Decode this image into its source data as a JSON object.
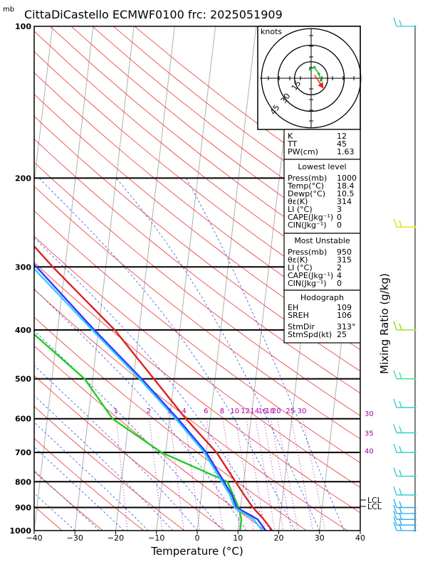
{
  "chart_data": {
    "type": "line",
    "title": "CittaDiCastello ECMWF0100 frc: 2025051909",
    "pressure_unit": "mb",
    "xlabel": "Temperature (°C)",
    "ylabel_right": "Mixing Ratio (g/kg)",
    "xlim": [
      -40,
      40
    ],
    "ylim": [
      1000,
      100
    ],
    "x_ticks": [
      -40,
      -30,
      -20,
      -10,
      0,
      10,
      20,
      30,
      40
    ],
    "pressure_levels": [
      100,
      200,
      300,
      400,
      500,
      600,
      700,
      800,
      900,
      1000
    ],
    "mixing_ratio_labels": [
      "1",
      "2",
      "3",
      "4",
      "6",
      "8",
      "10",
      "12",
      "14",
      "16",
      "18",
      "20",
      "25",
      "30"
    ],
    "theta_e_labels": [
      "30",
      "35",
      "40"
    ],
    "lcl_labels": [
      "LCL",
      "LCL"
    ],
    "grid": true,
    "series": [
      {
        "key": "temperature",
        "color": "#dd2222",
        "points": [
          [
            1000,
            18.4
          ],
          [
            950,
            16.0
          ],
          [
            900,
            13.0
          ],
          [
            850,
            10.5
          ],
          [
            800,
            8.0
          ],
          [
            700,
            2.5
          ],
          [
            600,
            -6.0
          ],
          [
            500,
            -15.0
          ],
          [
            400,
            -26.0
          ],
          [
            300,
            -43.0
          ],
          [
            250,
            -53.0
          ],
          [
            200,
            -54.0
          ],
          [
            150,
            -54.0
          ],
          [
            100,
            -56.0
          ]
        ]
      },
      {
        "key": "dewpoint",
        "color": "#22cc22",
        "points": [
          [
            1000,
            10.5
          ],
          [
            950,
            10.5
          ],
          [
            900,
            9.5
          ],
          [
            800,
            6.0
          ],
          [
            700,
            -11.0
          ],
          [
            600,
            -24.0
          ],
          [
            500,
            -32.0
          ],
          [
            400,
            -47.0
          ],
          [
            300,
            -60.0
          ],
          [
            250,
            -68.0
          ],
          [
            200,
            -77.0
          ],
          [
            150,
            -87.0
          ],
          [
            100,
            -97.0
          ]
        ]
      },
      {
        "key": "parcel_virtual",
        "color": "#3333ff",
        "points": [
          [
            1000,
            16.8
          ],
          [
            950,
            14.5
          ],
          [
            900,
            9.0
          ],
          [
            850,
            7.5
          ],
          [
            700,
            0.0
          ],
          [
            600,
            -8.0
          ],
          [
            500,
            -18.0
          ],
          [
            400,
            -31.0
          ],
          [
            300,
            -47.0
          ],
          [
            250,
            -58.0
          ],
          [
            200,
            -70.0
          ],
          [
            150,
            -84.0
          ],
          [
            100,
            -97.5
          ]
        ]
      },
      {
        "key": "parcel",
        "color": "#33ccff",
        "points": [
          [
            1000,
            16.0
          ],
          [
            950,
            13.5
          ],
          [
            900,
            8.5
          ],
          [
            850,
            7.0
          ],
          [
            700,
            -0.5
          ],
          [
            600,
            -8.5
          ],
          [
            500,
            -18.5
          ],
          [
            400,
            -31.5
          ],
          [
            300,
            -48.0
          ],
          [
            250,
            -58.5
          ],
          [
            200,
            -71.0
          ],
          [
            150,
            -85.0
          ],
          [
            100,
            -98.5
          ]
        ]
      }
    ]
  },
  "hodograph": {
    "units_label": "knots",
    "ring_labels": [
      "15",
      "30",
      "45"
    ],
    "wind_trace": [
      [
        -1,
        8
      ],
      [
        3,
        10
      ],
      [
        7,
        4
      ],
      [
        9,
        -2
      ]
    ],
    "storm_motion": [
      11,
      -9
    ]
  },
  "indices": {
    "top": [
      {
        "label": "K",
        "value": "12"
      },
      {
        "label": "TT",
        "value": "45"
      },
      {
        "label": "PW(cm)",
        "value": "1.63"
      }
    ],
    "lowest_title": "Lowest level",
    "lowest": [
      {
        "label": "Press(mb)",
        "value": "1000"
      },
      {
        "label": "Temp(°C)",
        "value": "18.4"
      },
      {
        "label": "Dewp(°C)",
        "value": "10.5"
      },
      {
        "label": "θε(K)",
        "value": "314"
      },
      {
        "label": "LI (°C)",
        "value": "3"
      },
      {
        "label": "CAPE(Jkg⁻¹)",
        "value": "0"
      },
      {
        "label": "CIN(Jkg⁻¹)",
        "value": "0"
      }
    ],
    "unstable_title": "Most Unstable",
    "unstable": [
      {
        "label": "Press(mb)",
        "value": "950"
      },
      {
        "label": "θε(K)",
        "value": "315"
      },
      {
        "label": "LI (°C)",
        "value": "2"
      },
      {
        "label": "CAPE(Jkg⁻¹)",
        "value": "4"
      },
      {
        "label": "CIN(Jkg⁻¹)",
        "value": "0"
      }
    ],
    "hodo_title": "Hodograph",
    "hodo": [
      {
        "label": "EH",
        "value": "109"
      },
      {
        "label": "SREH",
        "value": "106"
      },
      {
        "label": "StmDir",
        "value": "313°"
      },
      {
        "label": "StmSpd(kt)",
        "value": "25"
      }
    ]
  },
  "wind_profile": {
    "barbs": [
      {
        "p": 100,
        "color": "#33cccc"
      },
      {
        "p": 250,
        "color": "#dddd00"
      },
      {
        "p": 400,
        "color": "#88dd00"
      },
      {
        "p": 500,
        "color": "#33dd88"
      },
      {
        "p": 570,
        "color": "#22cccc"
      },
      {
        "p": 640,
        "color": "#22cccc"
      },
      {
        "p": 700,
        "color": "#22cccc"
      },
      {
        "p": 780,
        "color": "#22cccc"
      },
      {
        "p": 850,
        "color": "#22cccc"
      },
      {
        "p": 900,
        "color": "#22aaee"
      },
      {
        "p": 925,
        "color": "#22aaee"
      },
      {
        "p": 950,
        "color": "#22aaee"
      },
      {
        "p": 975,
        "color": "#22aaee"
      },
      {
        "p": 1000,
        "color": "#22aaee"
      }
    ]
  }
}
